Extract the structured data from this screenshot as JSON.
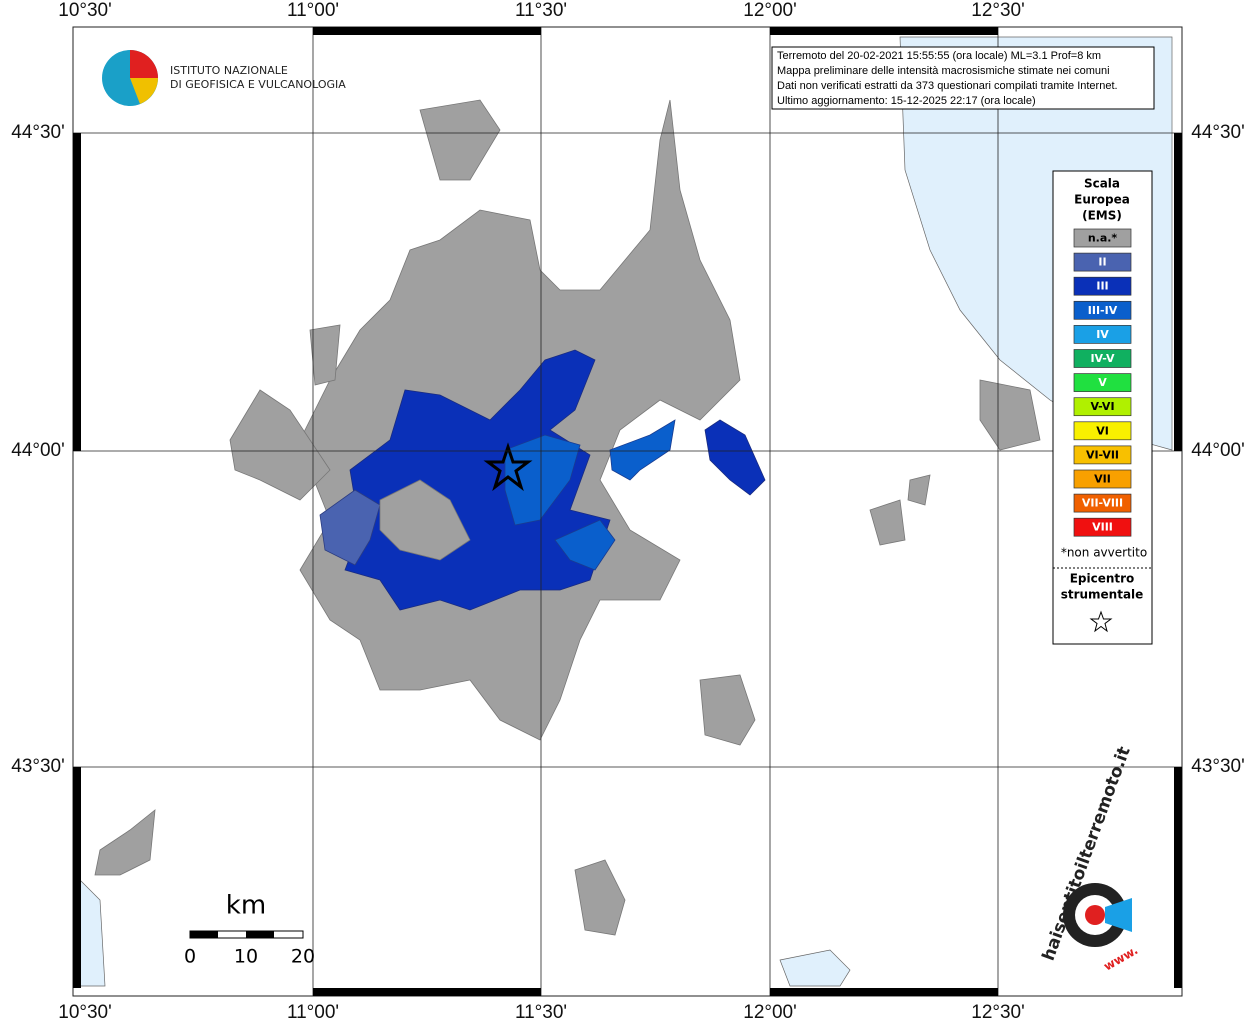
{
  "logo": {
    "lines": [
      "ISTITUTO NAZIONALE",
      "DI GEOFISICA E VULCANOLOGIA"
    ]
  },
  "info": [
    "Terremoto del 20-02-2021 15:55:55 (ora locale) ML=3.1 Prof=8 km",
    "Mappa preliminare delle intensità macrosismiche stimate nei comuni",
    "Dati non verificati estratti da 373 questionari compilati tramite Internet.",
    "Ultimo aggiornamento: 15-12-2025 22:17 (ora locale)"
  ],
  "axes": {
    "longitude": [
      "10°30'",
      "11°00'",
      "11°30'",
      "12°00'",
      "12°30'"
    ],
    "latitude": [
      "44°30'",
      "44°00'",
      "43°30'"
    ]
  },
  "legend": {
    "title": [
      "Scala",
      "Europea",
      "(EMS)"
    ],
    "items": [
      {
        "label": "n.a.*",
        "color": "#a0a0a0"
      },
      {
        "label": "II",
        "color": "#4a63b0"
      },
      {
        "label": "III",
        "color": "#0a30b8"
      },
      {
        "label": "III-IV",
        "color": "#0a5fcc"
      },
      {
        "label": "IV",
        "color": "#1aa0e6"
      },
      {
        "label": "IV-V",
        "color": "#10b060"
      },
      {
        "label": "V",
        "color": "#20e040"
      },
      {
        "label": "V-VI",
        "color": "#b0f000"
      },
      {
        "label": "VI",
        "color": "#f8f000"
      },
      {
        "label": "VI-VII",
        "color": "#f8c000"
      },
      {
        "label": "VII",
        "color": "#f8a000"
      },
      {
        "label": "VII-VIII",
        "color": "#f06000"
      },
      {
        "label": "VIII",
        "color": "#f01010"
      }
    ],
    "note": "*non avvertito",
    "epicenter": [
      "Epicentro",
      "strumentale"
    ]
  },
  "scale_bar": {
    "unit": "km",
    "labels": [
      "0",
      "10",
      "20"
    ]
  },
  "site_logo": {
    "text": "haisentitoilterremoto.it",
    "url": "www."
  }
}
